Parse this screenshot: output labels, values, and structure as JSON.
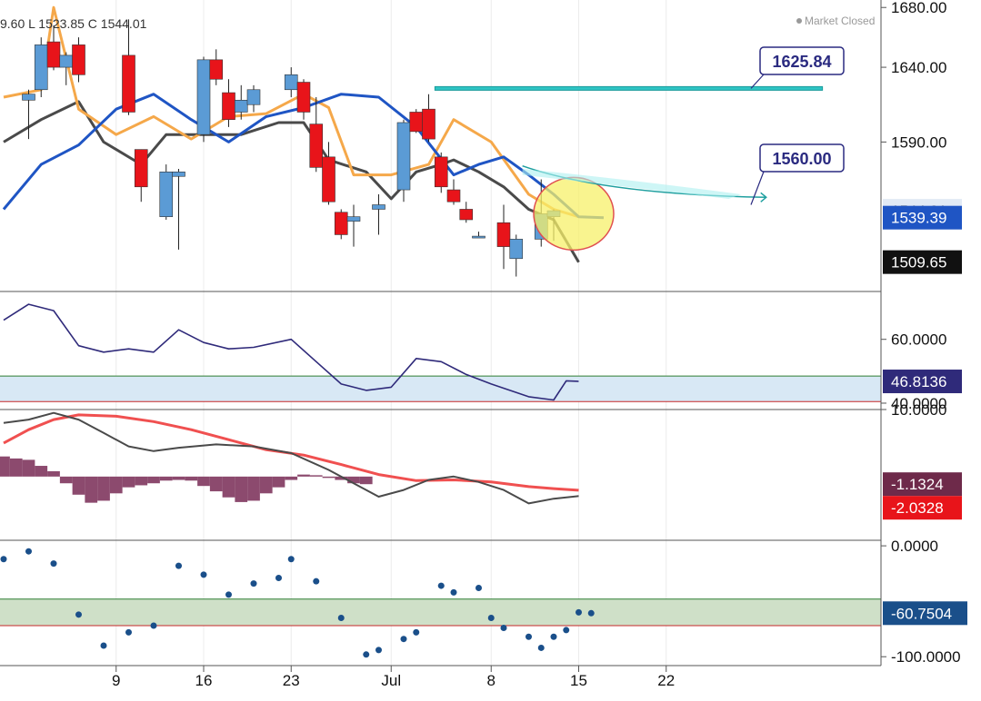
{
  "header": {
    "ohlc_text": "9.60  L 1523.85  C 1544.01",
    "status": "Market Closed"
  },
  "x_labels": [
    {
      "label": "9",
      "day": 9
    },
    {
      "label": "16",
      "day": 16
    },
    {
      "label": "23",
      "day": 23
    },
    {
      "label": "Jul",
      "day": 31
    },
    {
      "label": "8",
      "day": 39
    },
    {
      "label": "15",
      "day": 46
    },
    {
      "label": "22",
      "day": 53
    }
  ],
  "colors": {
    "up": "#5b9bd5",
    "down": "#e8141a",
    "ma_blue": "#1f55c4",
    "ma_orange": "#f5a84a",
    "ma_gray": "#4a4a4a",
    "channel": "#2ec4c4",
    "rsi_line": "#2f2a7a",
    "rsi_band": "#d8e8f5",
    "macd_fast": "#4a4a4a",
    "macd_slow": "#f05050",
    "hist": "#8c4a6e",
    "pct_dot": "#1a4f8a",
    "pct_band": "#cfe0c8"
  },
  "chart_data": [
    {
      "type": "candlestick",
      "y_ticks": [
        "1680.00",
        "1640.00",
        "1590.00"
      ],
      "ylim": [
        1490,
        1685
      ],
      "callouts": [
        "1625.84",
        "1560.00"
      ],
      "price_tags": [
        {
          "text": "1544.01",
          "value": 1544.01,
          "color": "#e2eaf5",
          "text_color": "#111111"
        },
        {
          "text": "1539.39",
          "value": 1539.39,
          "color": "#1f55c4",
          "text_color": "#ffffff"
        },
        {
          "text": "1509.65",
          "value": 1509.65,
          "color": "#111111",
          "text_color": "#ffffff"
        }
      ],
      "horizontal_level": 1625.84,
      "candles": [
        {
          "day": 2,
          "o": 1618,
          "h": 1625,
          "l": 1592,
          "c": 1622
        },
        {
          "day": 3,
          "o": 1625,
          "h": 1660,
          "l": 1620,
          "c": 1655
        },
        {
          "day": 4,
          "o": 1657,
          "h": 1668,
          "l": 1638,
          "c": 1640
        },
        {
          "day": 5,
          "o": 1640,
          "h": 1650,
          "l": 1628,
          "c": 1648
        },
        {
          "day": 6,
          "o": 1655,
          "h": 1660,
          "l": 1630,
          "c": 1635
        },
        {
          "day": 10,
          "o": 1648,
          "h": 1672,
          "l": 1608,
          "c": 1610
        },
        {
          "day": 11,
          "o": 1585,
          "h": 1585,
          "l": 1550,
          "c": 1560
        },
        {
          "day": 13,
          "o": 1540,
          "h": 1575,
          "l": 1538,
          "c": 1570
        },
        {
          "day": 14,
          "o": 1567,
          "h": 1572,
          "l": 1518,
          "c": 1570
        },
        {
          "day": 16,
          "o": 1595,
          "h": 1647,
          "l": 1590,
          "c": 1645
        },
        {
          "day": 17,
          "o": 1645,
          "h": 1652,
          "l": 1628,
          "c": 1632
        },
        {
          "day": 18,
          "o": 1623,
          "h": 1632,
          "l": 1600,
          "c": 1605
        },
        {
          "day": 19,
          "o": 1610,
          "h": 1628,
          "l": 1605,
          "c": 1618
        },
        {
          "day": 20,
          "o": 1615,
          "h": 1628,
          "l": 1610,
          "c": 1625
        },
        {
          "day": 23,
          "o": 1625,
          "h": 1640,
          "l": 1620,
          "c": 1635
        },
        {
          "day": 24,
          "o": 1630,
          "h": 1632,
          "l": 1605,
          "c": 1610
        },
        {
          "day": 25,
          "o": 1602,
          "h": 1620,
          "l": 1570,
          "c": 1573
        },
        {
          "day": 26,
          "o": 1580,
          "h": 1590,
          "l": 1548,
          "c": 1550
        },
        {
          "day": 27,
          "o": 1543,
          "h": 1545,
          "l": 1525,
          "c": 1528
        },
        {
          "day": 28,
          "o": 1537,
          "h": 1548,
          "l": 1520,
          "c": 1540
        },
        {
          "day": 30,
          "o": 1545,
          "h": 1555,
          "l": 1528,
          "c": 1548
        },
        {
          "day": 32,
          "o": 1558,
          "h": 1605,
          "l": 1550,
          "c": 1603
        },
        {
          "day": 33,
          "o": 1610,
          "h": 1612,
          "l": 1596,
          "c": 1597
        },
        {
          "day": 34,
          "o": 1612,
          "h": 1622,
          "l": 1590,
          "c": 1592
        },
        {
          "day": 35,
          "o": 1580,
          "h": 1583,
          "l": 1556,
          "c": 1560
        },
        {
          "day": 36,
          "o": 1558,
          "h": 1565,
          "l": 1548,
          "c": 1550
        },
        {
          "day": 37,
          "o": 1545,
          "h": 1550,
          "l": 1536,
          "c": 1538
        },
        {
          "day": 38,
          "o": 1527,
          "h": 1530,
          "l": 1527,
          "c": 1527
        },
        {
          "day": 40,
          "o": 1536,
          "h": 1548,
          "l": 1505,
          "c": 1520
        },
        {
          "day": 41,
          "o": 1512,
          "h": 1528,
          "l": 1500,
          "c": 1525
        },
        {
          "day": 43,
          "o": 1525,
          "h": 1565,
          "l": 1520,
          "c": 1542
        },
        {
          "day": 44,
          "o": 1540,
          "h": 1545,
          "l": 1523.85,
          "c": 1544.01
        }
      ],
      "ma_blue": [
        {
          "day": 0,
          "v": 1545
        },
        {
          "day": 3,
          "v": 1575
        },
        {
          "day": 6,
          "v": 1588
        },
        {
          "day": 9,
          "v": 1612
        },
        {
          "day": 12,
          "v": 1622
        },
        {
          "day": 15,
          "v": 1605
        },
        {
          "day": 18,
          "v": 1590
        },
        {
          "day": 21,
          "v": 1607
        },
        {
          "day": 24,
          "v": 1613
        },
        {
          "day": 27,
          "v": 1622
        },
        {
          "day": 30,
          "v": 1620
        },
        {
          "day": 33,
          "v": 1600
        },
        {
          "day": 36,
          "v": 1568
        },
        {
          "day": 38,
          "v": 1575
        },
        {
          "day": 40,
          "v": 1580
        },
        {
          "day": 42,
          "v": 1568
        },
        {
          "day": 44,
          "v": 1555
        },
        {
          "day": 46,
          "v": 1540
        },
        {
          "day": 48,
          "v": 1539.39
        }
      ],
      "ma_orange": [
        {
          "day": 0,
          "v": 1620
        },
        {
          "day": 3,
          "v": 1625
        },
        {
          "day": 4,
          "v": 1680
        },
        {
          "day": 6,
          "v": 1612
        },
        {
          "day": 9,
          "v": 1595
        },
        {
          "day": 12,
          "v": 1607
        },
        {
          "day": 15,
          "v": 1592
        },
        {
          "day": 18,
          "v": 1607
        },
        {
          "day": 21,
          "v": 1609
        },
        {
          "day": 24,
          "v": 1622
        },
        {
          "day": 26,
          "v": 1613
        },
        {
          "day": 28,
          "v": 1568
        },
        {
          "day": 31,
          "v": 1568
        },
        {
          "day": 34,
          "v": 1575
        },
        {
          "day": 36,
          "v": 1605
        },
        {
          "day": 39,
          "v": 1590
        },
        {
          "day": 42,
          "v": 1555
        },
        {
          "day": 44,
          "v": 1545
        },
        {
          "day": 46,
          "v": 1540
        }
      ],
      "ma_gray": [
        {
          "day": 0,
          "v": 1590
        },
        {
          "day": 3,
          "v": 1605
        },
        {
          "day": 6,
          "v": 1617
        },
        {
          "day": 8,
          "v": 1590
        },
        {
          "day": 11,
          "v": 1575
        },
        {
          "day": 13,
          "v": 1595
        },
        {
          "day": 16,
          "v": 1595
        },
        {
          "day": 19,
          "v": 1595
        },
        {
          "day": 22,
          "v": 1603
        },
        {
          "day": 24,
          "v": 1603
        },
        {
          "day": 26,
          "v": 1578
        },
        {
          "day": 29,
          "v": 1570
        },
        {
          "day": 31,
          "v": 1552
        },
        {
          "day": 33,
          "v": 1570
        },
        {
          "day": 35,
          "v": 1575
        },
        {
          "day": 36,
          "v": 1578
        },
        {
          "day": 38,
          "v": 1570
        },
        {
          "day": 40,
          "v": 1560
        },
        {
          "day": 42,
          "v": 1545
        },
        {
          "day": 44,
          "v": 1538
        },
        {
          "day": 46,
          "v": 1509.65
        }
      ]
    },
    {
      "type": "line",
      "y_ticks": [
        "60.0000",
        "40.0000"
      ],
      "ylim": [
        38,
        75
      ],
      "band": [
        40.5,
        48.5
      ],
      "last_value": "46.8136",
      "points": [
        {
          "day": 0,
          "v": 66
        },
        {
          "day": 2,
          "v": 71
        },
        {
          "day": 4,
          "v": 69
        },
        {
          "day": 6,
          "v": 58
        },
        {
          "day": 8,
          "v": 56
        },
        {
          "day": 10,
          "v": 57
        },
        {
          "day": 12,
          "v": 56
        },
        {
          "day": 14,
          "v": 63
        },
        {
          "day": 16,
          "v": 59
        },
        {
          "day": 18,
          "v": 57
        },
        {
          "day": 20,
          "v": 57.5
        },
        {
          "day": 23,
          "v": 60
        },
        {
          "day": 25,
          "v": 53
        },
        {
          "day": 27,
          "v": 46
        },
        {
          "day": 29,
          "v": 44
        },
        {
          "day": 31,
          "v": 45
        },
        {
          "day": 33,
          "v": 54
        },
        {
          "day": 35,
          "v": 53
        },
        {
          "day": 37,
          "v": 49
        },
        {
          "day": 39,
          "v": 46
        },
        {
          "day": 42,
          "v": 42
        },
        {
          "day": 44,
          "v": 41
        },
        {
          "day": 45,
          "v": 47
        },
        {
          "day": 46,
          "v": 46.8136
        }
      ]
    },
    {
      "type": "histogram+lines",
      "y_ticks": [
        "10.0000"
      ],
      "ylim": [
        -9.5,
        10
      ],
      "last_values": [
        "-1.1324",
        "-2.0328"
      ],
      "fast": [
        {
          "day": 0,
          "v": 8
        },
        {
          "day": 2,
          "v": 8.5
        },
        {
          "day": 4,
          "v": 9.5
        },
        {
          "day": 6,
          "v": 8.5
        },
        {
          "day": 8,
          "v": 6.5
        },
        {
          "day": 10,
          "v": 4.5
        },
        {
          "day": 12,
          "v": 3.8
        },
        {
          "day": 14,
          "v": 4.3
        },
        {
          "day": 17,
          "v": 4.8
        },
        {
          "day": 20,
          "v": 4.5
        },
        {
          "day": 23,
          "v": 3.5
        },
        {
          "day": 26,
          "v": 1
        },
        {
          "day": 28,
          "v": -1
        },
        {
          "day": 30,
          "v": -3
        },
        {
          "day": 32,
          "v": -2
        },
        {
          "day": 34,
          "v": -0.5
        },
        {
          "day": 36,
          "v": 0
        },
        {
          "day": 38,
          "v": -0.8
        },
        {
          "day": 40,
          "v": -2
        },
        {
          "day": 42,
          "v": -4
        },
        {
          "day": 44,
          "v": -3.3
        },
        {
          "day": 46,
          "v": -2.9
        }
      ],
      "slow": [
        {
          "day": 0,
          "v": 5
        },
        {
          "day": 2,
          "v": 7
        },
        {
          "day": 4,
          "v": 8.5
        },
        {
          "day": 6,
          "v": 9.2
        },
        {
          "day": 9,
          "v": 9
        },
        {
          "day": 12,
          "v": 8.2
        },
        {
          "day": 15,
          "v": 7
        },
        {
          "day": 18,
          "v": 5.5
        },
        {
          "day": 21,
          "v": 4
        },
        {
          "day": 24,
          "v": 3.2
        },
        {
          "day": 27,
          "v": 1.8
        },
        {
          "day": 30,
          "v": 0.3
        },
        {
          "day": 33,
          "v": -0.6
        },
        {
          "day": 36,
          "v": -0.5
        },
        {
          "day": 39,
          "v": -0.8
        },
        {
          "day": 42,
          "v": -1.5
        },
        {
          "day": 44,
          "v": -1.8
        },
        {
          "day": 46,
          "v": -2.0328
        }
      ],
      "hist": [
        {
          "day": 0,
          "v": 3
        },
        {
          "day": 1,
          "v": 2.7
        },
        {
          "day": 2,
          "v": 2.5
        },
        {
          "day": 3,
          "v": 1.6
        },
        {
          "day": 4,
          "v": 0.8
        },
        {
          "day": 5,
          "v": -1
        },
        {
          "day": 6,
          "v": -2.7
        },
        {
          "day": 7,
          "v": -3.9
        },
        {
          "day": 8,
          "v": -3.6
        },
        {
          "day": 9,
          "v": -2.5
        },
        {
          "day": 10,
          "v": -1.6
        },
        {
          "day": 11,
          "v": -1.3
        },
        {
          "day": 12,
          "v": -1
        },
        {
          "day": 13,
          "v": -0.6
        },
        {
          "day": 14,
          "v": -0.5
        },
        {
          "day": 15,
          "v": -0.6
        },
        {
          "day": 16,
          "v": -1.4
        },
        {
          "day": 17,
          "v": -2.2
        },
        {
          "day": 18,
          "v": -3.1
        },
        {
          "day": 19,
          "v": -3.8
        },
        {
          "day": 20,
          "v": -3.6
        },
        {
          "day": 21,
          "v": -2.5
        },
        {
          "day": 22,
          "v": -1.6
        },
        {
          "day": 23,
          "v": -0.5
        },
        {
          "day": 24,
          "v": 0.3
        },
        {
          "day": 25,
          "v": 0.2
        },
        {
          "day": 26,
          "v": -0.2
        },
        {
          "day": 27,
          "v": -0.5
        },
        {
          "day": 28,
          "v": -1
        },
        {
          "day": 29,
          "v": -1.1324
        }
      ]
    },
    {
      "type": "scatter",
      "y_ticks": [
        "0.0000",
        "-100.0000"
      ],
      "ylim": [
        -108,
        5
      ],
      "band": [
        -72,
        -48
      ],
      "last_value": "-60.7504",
      "points": [
        {
          "day": 0,
          "v": -12
        },
        {
          "day": 2,
          "v": -5
        },
        {
          "day": 4,
          "v": -16
        },
        {
          "day": 6,
          "v": -62
        },
        {
          "day": 8,
          "v": -90
        },
        {
          "day": 10,
          "v": -78
        },
        {
          "day": 12,
          "v": -72
        },
        {
          "day": 14,
          "v": -18
        },
        {
          "day": 16,
          "v": -26
        },
        {
          "day": 18,
          "v": -44
        },
        {
          "day": 20,
          "v": -34
        },
        {
          "day": 22,
          "v": -29
        },
        {
          "day": 23,
          "v": -12
        },
        {
          "day": 25,
          "v": -32
        },
        {
          "day": 27,
          "v": -65
        },
        {
          "day": 29,
          "v": -98
        },
        {
          "day": 30,
          "v": -94
        },
        {
          "day": 32,
          "v": -84
        },
        {
          "day": 33,
          "v": -78
        },
        {
          "day": 35,
          "v": -36
        },
        {
          "day": 36,
          "v": -42
        },
        {
          "day": 38,
          "v": -38
        },
        {
          "day": 39,
          "v": -65
        },
        {
          "day": 40,
          "v": -74
        },
        {
          "day": 42,
          "v": -82
        },
        {
          "day": 43,
          "v": -92
        },
        {
          "day": 44,
          "v": -82
        },
        {
          "day": 45,
          "v": -76
        },
        {
          "day": 46,
          "v": -60
        },
        {
          "day": 47,
          "v": -60.7504
        }
      ]
    }
  ]
}
